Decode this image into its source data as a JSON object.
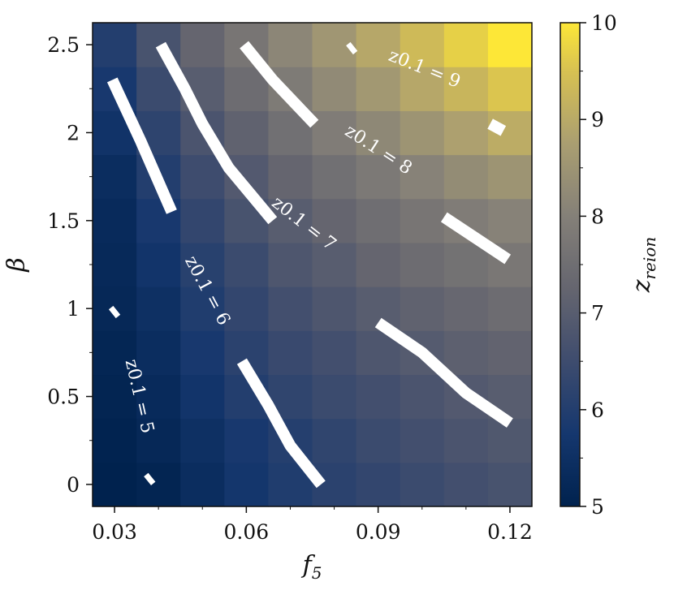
{
  "chart_data": {
    "type": "heatmap",
    "xlabel": "f",
    "xlabel_sub": "5",
    "ylabel": "β",
    "colorbar_label": "z",
    "colorbar_label_sub": "reion",
    "colormap": "cividis",
    "x_centers": [
      0.03,
      0.04,
      0.05,
      0.06,
      0.07,
      0.08,
      0.09,
      0.1,
      0.11,
      0.12
    ],
    "y_centers": [
      0.0,
      0.25,
      0.5,
      0.75,
      1.0,
      1.25,
      1.5,
      1.75,
      2.0,
      2.25,
      2.5
    ],
    "xlim": [
      0.025,
      0.125
    ],
    "ylim": [
      -0.125,
      2.625
    ],
    "clim": [
      5,
      10
    ],
    "x_ticks": [
      0.03,
      0.06,
      0.09,
      0.12
    ],
    "x_tick_labels": [
      "0.03",
      "0.06",
      "0.09",
      "0.12"
    ],
    "y_ticks": [
      0,
      0.5,
      1,
      1.5,
      2,
      2.5
    ],
    "y_tick_labels": [
      "0",
      "0.5",
      "1",
      "1.5",
      "2",
      "2.5"
    ],
    "colorbar_ticks": [
      5,
      6,
      7,
      8,
      9,
      10
    ],
    "colorbar_tick_labels": [
      "5",
      "6",
      "7",
      "8",
      "9",
      "10"
    ],
    "values": [
      [
        5.0,
        5.1,
        5.4,
        5.7,
        5.95,
        6.15,
        6.3,
        6.45,
        6.6,
        6.7
      ],
      [
        5.05,
        5.2,
        5.5,
        5.8,
        6.05,
        6.25,
        6.45,
        6.6,
        6.75,
        6.85
      ],
      [
        5.1,
        5.3,
        5.65,
        6.0,
        6.25,
        6.45,
        6.6,
        6.75,
        6.9,
        7.0
      ],
      [
        5.15,
        5.4,
        5.8,
        6.15,
        6.4,
        6.6,
        6.8,
        6.95,
        7.1,
        7.2
      ],
      [
        5.2,
        5.5,
        5.95,
        6.3,
        6.6,
        6.8,
        7.0,
        7.15,
        7.3,
        7.45
      ],
      [
        5.25,
        5.65,
        6.1,
        6.45,
        6.8,
        7.0,
        7.25,
        7.45,
        7.6,
        7.75
      ],
      [
        5.3,
        5.8,
        6.3,
        6.7,
        7.0,
        7.25,
        7.5,
        7.7,
        7.9,
        8.05
      ],
      [
        5.4,
        6.0,
        6.5,
        6.9,
        7.25,
        7.55,
        7.8,
        8.05,
        8.3,
        8.5
      ],
      [
        5.6,
        6.2,
        6.75,
        7.15,
        7.55,
        7.9,
        8.2,
        8.5,
        8.8,
        9.05
      ],
      [
        5.8,
        6.45,
        7.0,
        7.45,
        7.85,
        8.25,
        8.6,
        8.95,
        9.25,
        9.55
      ],
      [
        6.0,
        6.7,
        7.25,
        7.7,
        8.15,
        8.55,
        8.95,
        9.35,
        9.7,
        10.0
      ]
    ],
    "contours": [
      {
        "level": 5,
        "label": "z0.1 = 5",
        "label_pos": [
          0.0355,
          0.5
        ],
        "label_angle": 77,
        "segments": [
          [
            [
              0.0295,
              0.97
            ],
            [
              0.0305,
              0.99
            ]
          ],
          [
            [
              0.0375,
              0.02
            ],
            [
              0.0385,
              0.04
            ]
          ]
        ]
      },
      {
        "level": 6,
        "label": "z0.1 = 6",
        "label_pos": [
          0.051,
          1.1
        ],
        "label_angle": 62,
        "segments": [
          [
            [
              0.0295,
              2.3
            ],
            [
              0.036,
              1.95
            ],
            [
              0.043,
              1.55
            ]
          ],
          [
            [
              0.059,
              0.7
            ],
            [
              0.065,
              0.45
            ],
            [
              0.07,
              0.22
            ],
            [
              0.077,
              0.0
            ]
          ]
        ]
      },
      {
        "level": 7,
        "label": "z0.1 = 7",
        "label_pos": [
          0.073,
          1.48
        ],
        "label_angle": 38,
        "segments": [
          [
            [
              0.0405,
              2.5
            ],
            [
              0.046,
              2.25
            ],
            [
              0.05,
              2.05
            ],
            [
              0.056,
              1.8
            ],
            [
              0.066,
              1.5
            ]
          ],
          [
            [
              0.09,
              0.92
            ],
            [
              0.1,
              0.75
            ],
            [
              0.11,
              0.52
            ],
            [
              0.12,
              0.35
            ]
          ]
        ]
      },
      {
        "level": 8,
        "label": "z0.1 = 8",
        "label_pos": [
          0.09,
          1.9
        ],
        "label_angle": 33,
        "segments": [
          [
            [
              0.0595,
              2.5
            ],
            [
              0.066,
              2.3
            ],
            [
              0.0755,
              2.05
            ]
          ],
          [
            [
              0.105,
              1.52
            ],
            [
              0.1195,
              1.28
            ]
          ]
        ]
      },
      {
        "level": 9,
        "label": "z0.1 = 9",
        "label_pos": [
          0.1005,
          2.36
        ],
        "label_angle": 22,
        "segments": [
          [
            [
              0.0835,
              2.47
            ],
            [
              0.0845,
              2.49
            ]
          ],
          [
            [
              0.1155,
              2.05
            ],
            [
              0.1185,
              2.01
            ]
          ]
        ]
      }
    ]
  }
}
